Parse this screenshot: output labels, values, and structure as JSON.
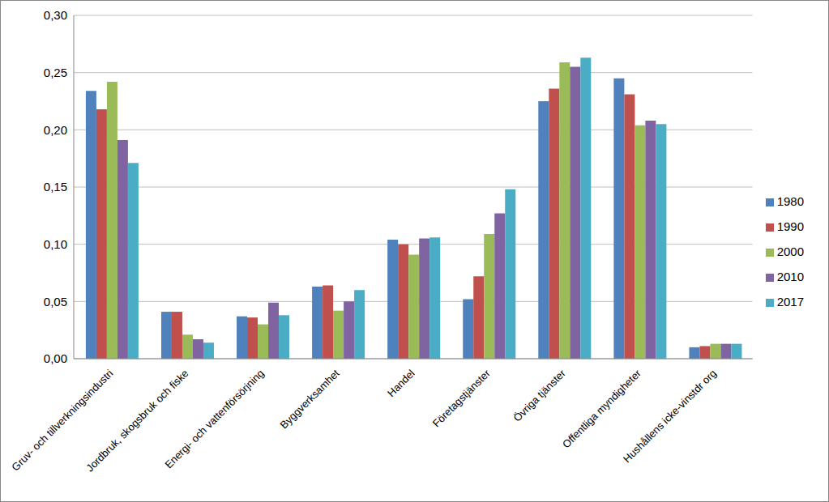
{
  "chart_data": {
    "type": "bar",
    "categories": [
      "Gruv- och tillverkningsindustri",
      "Jordbruk, skogsbruk och fiske",
      "Energi- och vattenförsörjning",
      "Byggverksamhet",
      "Handel",
      "Företagstjänster",
      "Övriga tjänster",
      "Offentliga myndigheter",
      "Hushållens icke-vinstdr org"
    ],
    "series": [
      {
        "name": "1980",
        "color": "#4f81bd",
        "values": [
          0.234,
          0.041,
          0.037,
          0.063,
          0.104,
          0.052,
          0.225,
          0.245,
          0.01
        ]
      },
      {
        "name": "1990",
        "color": "#c0504d",
        "values": [
          0.218,
          0.041,
          0.036,
          0.064,
          0.1,
          0.072,
          0.236,
          0.231,
          0.011
        ]
      },
      {
        "name": "2000",
        "color": "#9bbb59",
        "values": [
          0.242,
          0.021,
          0.03,
          0.042,
          0.091,
          0.109,
          0.259,
          0.204,
          0.013
        ]
      },
      {
        "name": "2010",
        "color": "#8064a2",
        "values": [
          0.191,
          0.017,
          0.049,
          0.05,
          0.105,
          0.127,
          0.255,
          0.208,
          0.013
        ]
      },
      {
        "name": "2017",
        "color": "#4bacc6",
        "values": [
          0.171,
          0.014,
          0.038,
          0.06,
          0.106,
          0.148,
          0.263,
          0.205,
          0.013
        ]
      }
    ],
    "ylim": [
      0,
      0.3
    ],
    "yticks": [
      {
        "value": 0,
        "label": "0,00"
      },
      {
        "value": 0.05,
        "label": "0,05"
      },
      {
        "value": 0.1,
        "label": "0,10"
      },
      {
        "value": 0.15,
        "label": "0,15"
      },
      {
        "value": 0.2,
        "label": "0,20"
      },
      {
        "value": 0.25,
        "label": "0,25"
      },
      {
        "value": 0.3,
        "label": "0,30"
      }
    ],
    "grid": true,
    "legend": "right"
  }
}
